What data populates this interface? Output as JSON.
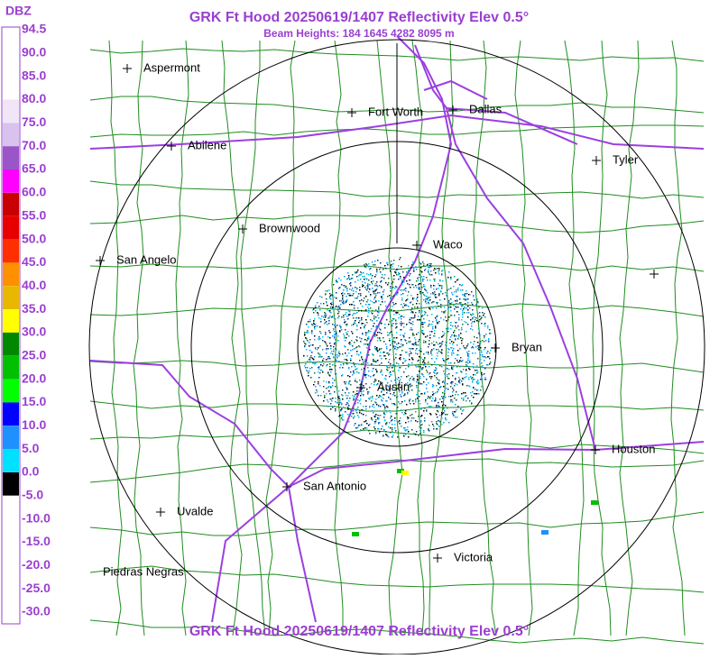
{
  "header": {
    "title": "GRK Ft Hood 20250619/1407 Reflectivity Elev 0.5°",
    "subtitle": "Beam Heights: 184 1645 4282 8095 m"
  },
  "footer": {
    "title": "GRK Ft Hood 20250619/1407 Reflectivity Elev 0.5°"
  },
  "legend": {
    "unit": "DBZ",
    "labels": [
      "94.5",
      "90.0",
      "85.0",
      "80.0",
      "75.0",
      "70.0",
      "65.0",
      "60.0",
      "55.0",
      "50.0",
      "45.0",
      "40.0",
      "35.0",
      "30.0",
      "25.0",
      "20.0",
      "15.0",
      "10.0",
      "5.0",
      "0.0",
      "-5.0",
      "-10.0",
      "-15.0",
      "-20.0",
      "-25.0",
      "-30.0"
    ],
    "colors": [
      "#ffffff",
      "#ffffff",
      "#ffffff",
      "#f0e6f8",
      "#d9c2ee",
      "#9a55c9",
      "#ff00ff",
      "#c80000",
      "#e80000",
      "#ff3000",
      "#ff9000",
      "#e8b800",
      "#ffff00",
      "#008800",
      "#00c000",
      "#00ff00",
      "#0000ff",
      "#1e90ff",
      "#00e0ff",
      "#000000",
      "#ffffff",
      "#ffffff",
      "#ffffff",
      "#ffffff",
      "#ffffff"
    ]
  },
  "cities": [
    {
      "label": "Aspermont"
    },
    {
      "label": "Abilene"
    },
    {
      "label": "Fort Worth"
    },
    {
      "label": "Dallas"
    },
    {
      "label": "Tyler"
    },
    {
      "label": "Brownwood"
    },
    {
      "label": "Waco"
    },
    {
      "label": "San Angelo"
    },
    {
      "label": "Bryan"
    },
    {
      "label": "Austin"
    },
    {
      "label": "Houston"
    },
    {
      "label": "San Antonio"
    },
    {
      "label": "Uvalde"
    },
    {
      "label": "Victoria"
    },
    {
      "label": "Piedras Negras"
    }
  ]
}
